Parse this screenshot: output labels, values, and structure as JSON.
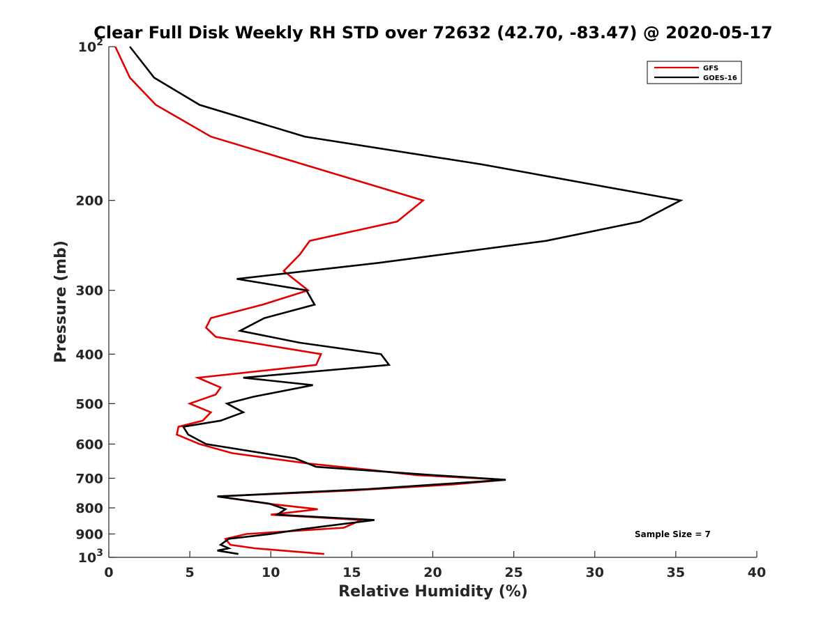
{
  "chart_data": {
    "type": "line",
    "title": "Clear Full Disk Weekly RH STD over 72632 (42.70, -83.47) @ 2020-05-17",
    "xlabel": "Relative Humidity (%)",
    "ylabel": "Pressure (mb)",
    "xlim": [
      0,
      40
    ],
    "ylim": [
      100,
      1000
    ],
    "y_scale": "log",
    "y_reversed": true,
    "grid": false,
    "legend_position": "top-right",
    "x_ticks": [
      "0",
      "5",
      "10",
      "15",
      "20",
      "25",
      "30",
      "35",
      "40"
    ],
    "y_ticks": [
      {
        "value": 100,
        "base": "10",
        "exp": "2"
      },
      {
        "value": 200,
        "label": "200"
      },
      {
        "value": 300,
        "label": "300"
      },
      {
        "value": 400,
        "label": "400"
      },
      {
        "value": 500,
        "label": "500"
      },
      {
        "value": 600,
        "label": "600"
      },
      {
        "value": 700,
        "label": "700"
      },
      {
        "value": 800,
        "label": "800"
      },
      {
        "value": 900,
        "label": "900"
      },
      {
        "value": 1000,
        "base": "10",
        "exp": "3"
      }
    ],
    "annotation": "Sample Size = 7",
    "series": [
      {
        "name": "GFS",
        "color": "#e00000",
        "points": [
          [
            0.4,
            100
          ],
          [
            1.3,
            115
          ],
          [
            2.9,
            130
          ],
          [
            6.3,
            150
          ],
          [
            12.0,
            170
          ],
          [
            19.4,
            200
          ],
          [
            17.8,
            220
          ],
          [
            12.4,
            240
          ],
          [
            11.8,
            255
          ],
          [
            10.8,
            275
          ],
          [
            12.3,
            300
          ],
          [
            9.5,
            320
          ],
          [
            6.3,
            340
          ],
          [
            6.0,
            355
          ],
          [
            6.6,
            370
          ],
          [
            13.1,
            400
          ],
          [
            12.8,
            420
          ],
          [
            5.5,
            445
          ],
          [
            6.9,
            465
          ],
          [
            6.6,
            480
          ],
          [
            5.0,
            500
          ],
          [
            6.3,
            520
          ],
          [
            5.8,
            540
          ],
          [
            4.3,
            555
          ],
          [
            4.2,
            575
          ],
          [
            5.6,
            600
          ],
          [
            7.6,
            625
          ],
          [
            12.3,
            655
          ],
          [
            16.3,
            675
          ],
          [
            19.0,
            690
          ],
          [
            24.5,
            705
          ],
          [
            21.2,
            720
          ],
          [
            15.0,
            740
          ],
          [
            6.7,
            760
          ],
          [
            9.8,
            785
          ],
          [
            12.9,
            805
          ],
          [
            10.0,
            825
          ],
          [
            15.6,
            845
          ],
          [
            14.5,
            875
          ],
          [
            8.5,
            900
          ],
          [
            7.2,
            920
          ],
          [
            7.5,
            945
          ],
          [
            9.0,
            960
          ],
          [
            13.3,
            985
          ]
        ]
      },
      {
        "name": "GOES-16",
        "color": "#000000",
        "points": [
          [
            1.3,
            100
          ],
          [
            2.8,
            115
          ],
          [
            5.6,
            130
          ],
          [
            12.1,
            150
          ],
          [
            23.0,
            170
          ],
          [
            35.3,
            200
          ],
          [
            32.8,
            220
          ],
          [
            27.0,
            240
          ],
          [
            16.7,
            265
          ],
          [
            7.9,
            285
          ],
          [
            12.2,
            300
          ],
          [
            12.7,
            320
          ],
          [
            9.6,
            340
          ],
          [
            8.1,
            360
          ],
          [
            11.8,
            380
          ],
          [
            16.8,
            400
          ],
          [
            17.3,
            420
          ],
          [
            8.3,
            445
          ],
          [
            12.6,
            460
          ],
          [
            8.9,
            485
          ],
          [
            7.3,
            500
          ],
          [
            8.3,
            520
          ],
          [
            6.9,
            540
          ],
          [
            4.6,
            555
          ],
          [
            4.9,
            575
          ],
          [
            6.0,
            600
          ],
          [
            11.5,
            640
          ],
          [
            12.8,
            665
          ],
          [
            20.0,
            690
          ],
          [
            24.5,
            705
          ],
          [
            16.0,
            735
          ],
          [
            6.7,
            760
          ],
          [
            9.9,
            785
          ],
          [
            10.9,
            805
          ],
          [
            10.4,
            825
          ],
          [
            16.4,
            845
          ],
          [
            12.0,
            880
          ],
          [
            10.0,
            900
          ],
          [
            7.4,
            920
          ],
          [
            6.9,
            945
          ],
          [
            7.4,
            960
          ],
          [
            6.7,
            970
          ],
          [
            8.0,
            985
          ]
        ]
      }
    ]
  }
}
